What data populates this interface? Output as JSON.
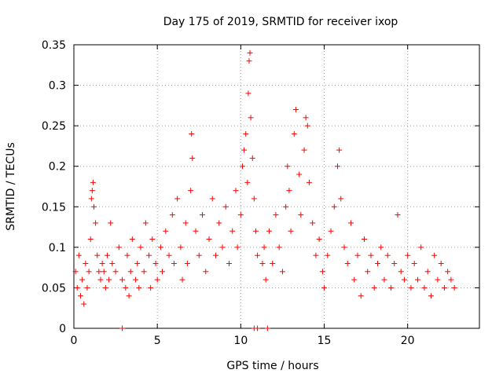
{
  "colors": {
    "series": "#ff0000",
    "grid": "#a0a0a0",
    "axis": "#000000"
  },
  "chart_data": {
    "type": "scatter",
    "title": "Day 175 of 2019, SRMTID for receiver ixop",
    "xlabel": "GPS time / hours",
    "ylabel": "SRMTID / TECUs",
    "xlim": [
      0,
      24.3
    ],
    "ylim": [
      0,
      0.35
    ],
    "xticks": [
      0,
      5,
      10,
      15,
      20
    ],
    "yticks": [
      0,
      0.05,
      0.1,
      0.15,
      0.2,
      0.25,
      0.3,
      0.35
    ],
    "xtick_labels": [
      "0",
      "5",
      "10",
      "15",
      "20"
    ],
    "ytick_labels": [
      "0",
      "0.05",
      "0.1",
      "0.15",
      "0.2",
      "0.25",
      "0.3",
      "0.35"
    ],
    "grid": true,
    "marker": "+",
    "series": [
      {
        "name": "SRMTID",
        "points": [
          [
            0.1,
            0.07
          ],
          [
            0.2,
            0.05
          ],
          [
            0.3,
            0.09
          ],
          [
            0.4,
            0.04
          ],
          [
            0.5,
            0.06
          ],
          [
            0.6,
            0.03
          ],
          [
            0.7,
            0.08
          ],
          [
            0.8,
            0.05
          ],
          [
            0.9,
            0.07
          ],
          [
            1.0,
            0.11
          ],
          [
            1.05,
            0.16
          ],
          [
            1.1,
            0.17
          ],
          [
            1.15,
            0.18
          ],
          [
            1.2,
            0.15
          ],
          [
            1.3,
            0.13
          ],
          [
            1.4,
            0.09
          ],
          [
            1.5,
            0.07
          ],
          [
            1.6,
            0.06
          ],
          [
            1.7,
            0.08
          ],
          [
            1.8,
            0.07
          ],
          [
            1.9,
            0.05
          ],
          [
            2.0,
            0.09
          ],
          [
            2.1,
            0.06
          ],
          [
            2.2,
            0.13
          ],
          [
            2.3,
            0.08
          ],
          [
            2.5,
            0.07
          ],
          [
            2.7,
            0.1
          ],
          [
            2.9,
            0.06
          ],
          [
            3.1,
            0.05
          ],
          [
            3.2,
            0.09
          ],
          [
            3.3,
            0.04
          ],
          [
            3.4,
            0.07
          ],
          [
            3.5,
            0.11
          ],
          [
            3.7,
            0.06
          ],
          [
            3.8,
            0.08
          ],
          [
            3.9,
            0.05
          ],
          [
            4.0,
            0.1
          ],
          [
            4.2,
            0.07
          ],
          [
            4.3,
            0.13
          ],
          [
            4.5,
            0.09
          ],
          [
            4.6,
            0.05
          ],
          [
            4.7,
            0.11
          ],
          [
            4.9,
            0.08
          ],
          [
            5.0,
            0.06
          ],
          [
            5.2,
            0.1
          ],
          [
            5.3,
            0.07
          ],
          [
            5.5,
            0.12
          ],
          [
            5.7,
            0.09
          ],
          [
            5.9,
            0.14
          ],
          [
            6.0,
            0.08
          ],
          [
            6.2,
            0.16
          ],
          [
            6.4,
            0.1
          ],
          [
            6.5,
            0.06
          ],
          [
            6.7,
            0.13
          ],
          [
            6.8,
            0.08
          ],
          [
            7.0,
            0.17
          ],
          [
            7.05,
            0.24
          ],
          [
            7.1,
            0.21
          ],
          [
            7.3,
            0.12
          ],
          [
            7.5,
            0.09
          ],
          [
            7.7,
            0.14
          ],
          [
            7.9,
            0.07
          ],
          [
            8.1,
            0.11
          ],
          [
            8.3,
            0.16
          ],
          [
            8.5,
            0.09
          ],
          [
            8.7,
            0.13
          ],
          [
            8.9,
            0.1
          ],
          [
            9.1,
            0.15
          ],
          [
            9.3,
            0.08
          ],
          [
            9.5,
            0.12
          ],
          [
            9.7,
            0.17
          ],
          [
            9.8,
            0.1
          ],
          [
            10.0,
            0.14
          ],
          [
            10.1,
            0.2
          ],
          [
            10.2,
            0.22
          ],
          [
            10.3,
            0.24
          ],
          [
            10.4,
            0.18
          ],
          [
            10.45,
            0.29
          ],
          [
            10.5,
            0.33
          ],
          [
            10.55,
            0.34
          ],
          [
            10.6,
            0.26
          ],
          [
            10.7,
            0.21
          ],
          [
            10.8,
            0.16
          ],
          [
            10.9,
            0.12
          ],
          [
            11.0,
            0.09
          ],
          [
            11.3,
            0.08
          ],
          [
            11.4,
            0.1
          ],
          [
            11.5,
            0.06
          ],
          [
            11.7,
            0.12
          ],
          [
            11.9,
            0.08
          ],
          [
            12.1,
            0.14
          ],
          [
            12.3,
            0.1
          ],
          [
            12.5,
            0.07
          ],
          [
            12.7,
            0.15
          ],
          [
            12.8,
            0.2
          ],
          [
            12.9,
            0.17
          ],
          [
            13.0,
            0.12
          ],
          [
            13.2,
            0.24
          ],
          [
            13.3,
            0.27
          ],
          [
            13.5,
            0.19
          ],
          [
            13.6,
            0.14
          ],
          [
            13.8,
            0.22
          ],
          [
            13.9,
            0.26
          ],
          [
            14.0,
            0.25
          ],
          [
            14.1,
            0.18
          ],
          [
            14.3,
            0.13
          ],
          [
            14.5,
            0.09
          ],
          [
            14.7,
            0.11
          ],
          [
            14.9,
            0.07
          ],
          [
            15.0,
            0.05
          ],
          [
            15.2,
            0.09
          ],
          [
            15.4,
            0.12
          ],
          [
            15.6,
            0.15
          ],
          [
            15.8,
            0.2
          ],
          [
            15.9,
            0.22
          ],
          [
            16.0,
            0.16
          ],
          [
            16.2,
            0.1
          ],
          [
            16.4,
            0.08
          ],
          [
            16.6,
            0.13
          ],
          [
            16.8,
            0.06
          ],
          [
            17.0,
            0.09
          ],
          [
            17.2,
            0.04
          ],
          [
            17.4,
            0.11
          ],
          [
            17.6,
            0.07
          ],
          [
            17.8,
            0.09
          ],
          [
            18.0,
            0.05
          ],
          [
            18.2,
            0.08
          ],
          [
            18.4,
            0.1
          ],
          [
            18.6,
            0.06
          ],
          [
            18.8,
            0.09
          ],
          [
            19.0,
            0.05
          ],
          [
            19.2,
            0.08
          ],
          [
            19.4,
            0.14
          ],
          [
            19.6,
            0.07
          ],
          [
            19.8,
            0.06
          ],
          [
            20.0,
            0.09
          ],
          [
            20.2,
            0.05
          ],
          [
            20.4,
            0.08
          ],
          [
            20.6,
            0.06
          ],
          [
            20.8,
            0.1
          ],
          [
            21.0,
            0.05
          ],
          [
            21.2,
            0.07
          ],
          [
            21.4,
            0.04
          ],
          [
            21.6,
            0.09
          ],
          [
            21.8,
            0.06
          ],
          [
            22.0,
            0.08
          ],
          [
            22.2,
            0.05
          ],
          [
            22.4,
            0.07
          ],
          [
            22.6,
            0.06
          ],
          [
            22.8,
            0.05
          ],
          [
            2.9,
            0.0
          ],
          [
            10.8,
            0.0
          ],
          [
            11.0,
            0.0
          ],
          [
            11.6,
            0.0
          ]
        ]
      }
    ]
  }
}
